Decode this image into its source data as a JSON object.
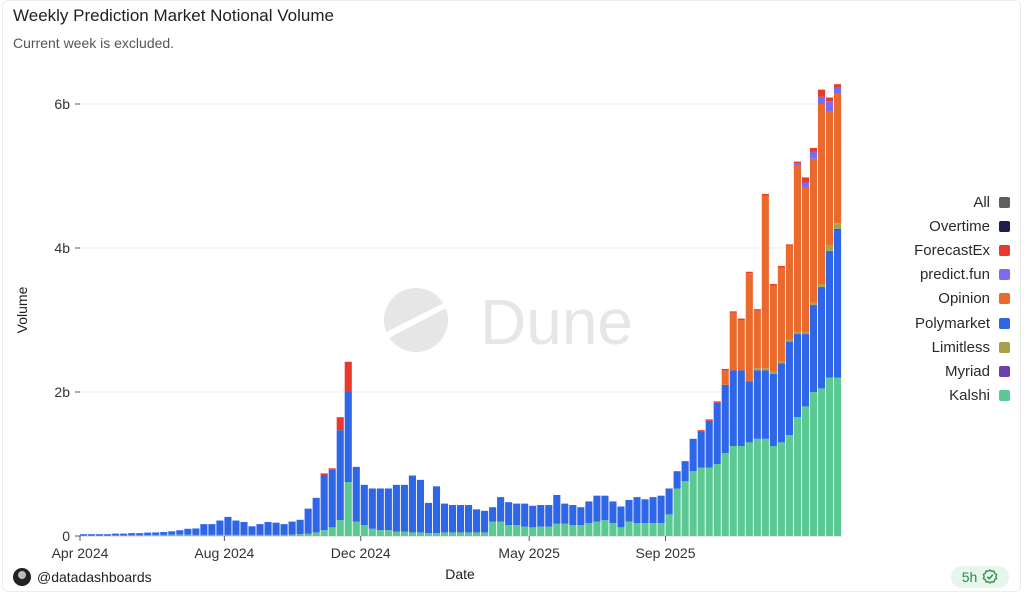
{
  "title": "Weekly Prediction Market Notional Volume",
  "subtitle": "Current week is excluded.",
  "watermark": "Dune",
  "footer": {
    "user": "@datadashboards",
    "age": "5h",
    "icon": "verified-check-icon"
  },
  "chart_data": {
    "type": "bar",
    "stacked": true,
    "xlabel": "Date",
    "ylabel": "Volume",
    "ylim": [
      0,
      6000000000
    ],
    "yticks": [
      {
        "value": 0,
        "label": "0"
      },
      {
        "value": 2000000000,
        "label": "2b"
      },
      {
        "value": 4000000000,
        "label": "4b"
      },
      {
        "value": 6000000000,
        "label": "6b"
      }
    ],
    "xticks": [
      {
        "label": "Apr 2024",
        "week_index": 0
      },
      {
        "label": "Aug 2024",
        "week_index": 18
      },
      {
        "label": "Dec 2024",
        "week_index": 35
      },
      {
        "label": "May 2025",
        "week_index": 56
      },
      {
        "label": "Sep 2025",
        "week_index": 73
      }
    ],
    "grid": true,
    "legend_position": "right",
    "colors": {
      "All": "#5f5f5f",
      "Overtime": "#1d1d4f",
      "ForecastEx": "#e8392c",
      "predict.fun": "#7a6cf0",
      "Opinion": "#ea6a2e",
      "Polymarket": "#2f66e8",
      "Limitless": "#a9a04a",
      "Myriad": "#6b3fb0",
      "Kalshi": "#5cc995"
    },
    "legend": [
      "All",
      "Overtime",
      "ForecastEx",
      "predict.fun",
      "Opinion",
      "Polymarket",
      "Limitless",
      "Myriad",
      "Kalshi"
    ],
    "series": [
      {
        "name": "Kalshi",
        "values": [
          5,
          5,
          5,
          5,
          8,
          8,
          10,
          10,
          12,
          15,
          15,
          20,
          20,
          20,
          15,
          15,
          15,
          15,
          15,
          15,
          15,
          15,
          15,
          15,
          15,
          15,
          20,
          25,
          30,
          50,
          80,
          120,
          220,
          750,
          200,
          150,
          100,
          80,
          80,
          60,
          60,
          50,
          50,
          40,
          40,
          50,
          50,
          50,
          50,
          50,
          50,
          200,
          200,
          150,
          150,
          130,
          120,
          130,
          130,
          170,
          170,
          150,
          150,
          180,
          200,
          220,
          180,
          120,
          200,
          180,
          180,
          180,
          180,
          300,
          660,
          760,
          900,
          950,
          950,
          1000,
          1150,
          1250,
          1250,
          1300,
          1350,
          1350,
          1250,
          1300,
          1400,
          1650,
          1800,
          2000,
          2050,
          2200,
          2200
        ]
      },
      {
        "name": "Polymarket",
        "values": [
          20,
          20,
          20,
          20,
          25,
          25,
          30,
          30,
          35,
          35,
          40,
          45,
          60,
          80,
          90,
          150,
          150,
          200,
          250,
          200,
          180,
          120,
          150,
          180,
          170,
          150,
          180,
          200,
          350,
          480,
          760,
          800,
          1250,
          1250,
          760,
          560,
          560,
          580,
          580,
          650,
          650,
          790,
          730,
          420,
          650,
          400,
          380,
          380,
          380,
          320,
          300,
          200,
          340,
          320,
          300,
          320,
          300,
          300,
          300,
          400,
          280,
          280,
          250,
          300,
          360,
          340,
          300,
          290,
          300,
          360,
          330,
          360,
          380,
          360,
          240,
          280,
          450,
          500,
          650,
          850,
          950,
          1050,
          1050,
          850,
          950,
          950,
          1000,
          1100,
          1300,
          1150,
          1000,
          1200,
          1400,
          1750,
          2050
        ]
      },
      {
        "name": "Myriad",
        "values": [
          0,
          0,
          0,
          0,
          0,
          0,
          0,
          0,
          0,
          0,
          0,
          0,
          0,
          0,
          0,
          0,
          0,
          0,
          0,
          0,
          0,
          0,
          0,
          0,
          0,
          0,
          0,
          0,
          0,
          0,
          0,
          0,
          0,
          0,
          0,
          0,
          0,
          0,
          0,
          0,
          0,
          0,
          0,
          0,
          0,
          0,
          0,
          0,
          0,
          0,
          0,
          0,
          0,
          0,
          0,
          0,
          0,
          0,
          0,
          0,
          0,
          0,
          0,
          0,
          0,
          0,
          0,
          0,
          0,
          0,
          0,
          0,
          0,
          0,
          0,
          0,
          0,
          0,
          0,
          0,
          0,
          0,
          0,
          0,
          0,
          0,
          0,
          0,
          0,
          10,
          10,
          10,
          10,
          10,
          15
        ]
      },
      {
        "name": "Limitless",
        "values": [
          0,
          0,
          0,
          0,
          0,
          0,
          0,
          0,
          0,
          0,
          0,
          0,
          0,
          0,
          0,
          0,
          0,
          0,
          0,
          0,
          0,
          0,
          0,
          0,
          0,
          0,
          0,
          0,
          0,
          0,
          0,
          0,
          0,
          0,
          0,
          0,
          0,
          0,
          0,
          0,
          0,
          0,
          0,
          0,
          0,
          0,
          0,
          0,
          0,
          0,
          0,
          0,
          0,
          0,
          0,
          0,
          0,
          0,
          0,
          0,
          0,
          0,
          0,
          0,
          0,
          0,
          0,
          0,
          0,
          0,
          0,
          0,
          0,
          0,
          0,
          0,
          0,
          0,
          0,
          0,
          0,
          0,
          0,
          0,
          30,
          30,
          30,
          30,
          30,
          30,
          30,
          30,
          40,
          80,
          80
        ]
      },
      {
        "name": "Opinion",
        "values": [
          0,
          0,
          0,
          0,
          0,
          0,
          0,
          0,
          0,
          0,
          0,
          0,
          0,
          0,
          0,
          0,
          0,
          0,
          0,
          0,
          0,
          0,
          0,
          0,
          0,
          0,
          0,
          0,
          0,
          0,
          0,
          0,
          0,
          0,
          0,
          0,
          0,
          0,
          0,
          0,
          0,
          0,
          0,
          0,
          0,
          0,
          0,
          0,
          0,
          0,
          0,
          0,
          0,
          0,
          0,
          0,
          0,
          0,
          0,
          0,
          0,
          0,
          0,
          0,
          0,
          0,
          0,
          0,
          0,
          0,
          0,
          0,
          0,
          0,
          0,
          0,
          0,
          0,
          0,
          0,
          200,
          800,
          700,
          1500,
          800,
          2400,
          1200,
          1300,
          1300,
          2300,
          2000,
          2000,
          2500,
          1850,
          1800
        ]
      },
      {
        "name": "predict.fun",
        "values": [
          0,
          0,
          0,
          0,
          0,
          0,
          0,
          0,
          0,
          0,
          0,
          0,
          0,
          0,
          0,
          0,
          0,
          0,
          0,
          0,
          0,
          0,
          0,
          0,
          0,
          0,
          0,
          0,
          0,
          0,
          0,
          0,
          0,
          0,
          0,
          0,
          0,
          0,
          0,
          0,
          0,
          0,
          0,
          0,
          0,
          0,
          0,
          0,
          0,
          0,
          0,
          0,
          0,
          0,
          0,
          0,
          0,
          0,
          0,
          0,
          0,
          0,
          0,
          0,
          0,
          0,
          0,
          0,
          0,
          0,
          0,
          0,
          0,
          0,
          0,
          0,
          0,
          0,
          0,
          0,
          0,
          0,
          0,
          0,
          0,
          0,
          0,
          0,
          0,
          40,
          70,
          100,
          100,
          150,
          80
        ]
      },
      {
        "name": "ForecastEx",
        "values": [
          0,
          0,
          0,
          0,
          0,
          0,
          0,
          0,
          0,
          0,
          0,
          0,
          0,
          0,
          0,
          0,
          0,
          0,
          0,
          0,
          0,
          0,
          0,
          0,
          0,
          0,
          0,
          0,
          0,
          0,
          30,
          20,
          180,
          420,
          0,
          0,
          0,
          0,
          0,
          0,
          0,
          0,
          0,
          0,
          0,
          0,
          0,
          0,
          0,
          0,
          0,
          0,
          0,
          0,
          0,
          0,
          0,
          0,
          0,
          0,
          0,
          0,
          0,
          0,
          0,
          0,
          0,
          0,
          0,
          0,
          0,
          0,
          0,
          0,
          0,
          0,
          0,
          20,
          20,
          20,
          20,
          20,
          20,
          20,
          20,
          20,
          20,
          20,
          20,
          20,
          70,
          50,
          100,
          50,
          50
        ]
      }
    ]
  }
}
